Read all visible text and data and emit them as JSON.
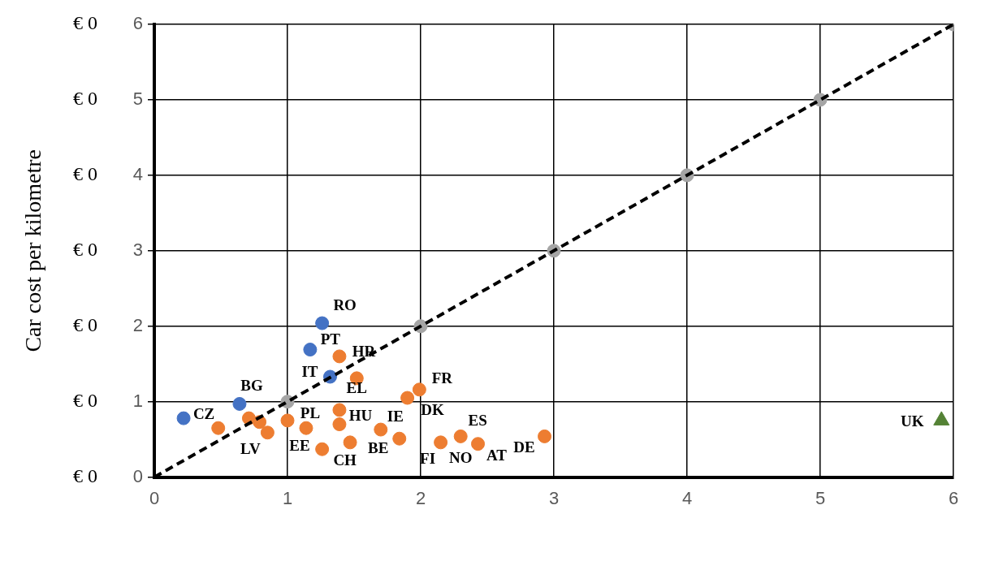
{
  "chart_data": {
    "type": "scatter",
    "ylabel": "Car cost per kilometre",
    "xlim": [
      0,
      6
    ],
    "xticks": [
      0,
      1,
      2,
      3,
      4,
      5,
      6
    ],
    "ylim": [
      0,
      6
    ],
    "yticks": [
      0,
      1,
      2,
      3,
      4,
      5,
      6
    ],
    "grid": true,
    "legend": false,
    "marker": "circle",
    "series": [
      {
        "type": "line",
        "color": "#000000",
        "line_style": "dashed",
        "marker": "none",
        "x": [
          0,
          6
        ],
        "values": [
          0,
          6
        ]
      },
      {
        "color": "#a5a5a5",
        "x": [
          1,
          2,
          3,
          4,
          5,
          6
        ],
        "values": [
          1,
          2,
          3,
          4,
          5,
          6
        ]
      },
      {
        "color": "#4472c4",
        "x": [
          0.22,
          0.64,
          1.32,
          1.17,
          1.26
        ],
        "values": [
          0.78,
          0.97,
          1.33,
          1.69,
          2.04
        ]
      },
      {
        "color": "#ed7d31",
        "x": [
          0.48,
          0.71,
          0.79,
          0.85,
          1.0,
          1.14,
          1.26,
          1.39,
          1.39,
          1.39,
          1.47,
          1.52,
          1.7,
          1.84,
          1.9,
          1.99,
          2.15,
          2.3,
          2.43,
          2.93
        ],
        "values": [
          0.65,
          0.78,
          0.73,
          0.59,
          0.75,
          0.65,
          0.37,
          0.89,
          0.7,
          1.6,
          0.46,
          1.31,
          0.63,
          0.51,
          1.05,
          1.16,
          0.46,
          0.54,
          0.44,
          0.54
        ]
      },
      {
        "color": "#548235",
        "marker": "triangle",
        "x": [
          5.91
        ],
        "values": [
          0.75
        ]
      }
    ],
    "annotations": [
      "€ 0",
      "€ 0",
      "€ 0",
      "€ 0",
      "€ 0",
      "€ 0",
      "€ 0",
      {
        "text": "RO",
        "x": 1.26,
        "y": 2.04
      },
      {
        "text": "PT",
        "x": 1.17,
        "y": 1.69
      },
      {
        "text": "HR",
        "x": 1.39,
        "y": 1.6
      },
      {
        "text": "IT",
        "x": 1.32,
        "y": 1.33
      },
      {
        "text": "EL",
        "x": 1.52,
        "y": 1.31
      },
      {
        "text": "FR",
        "x": 1.99,
        "y": 1.16
      },
      {
        "text": "BG",
        "x": 0.64,
        "y": 0.97
      },
      {
        "text": "CZ",
        "x": 0.22,
        "y": 0.78
      },
      {
        "text": "DK",
        "x": 1.9,
        "y": 1.05
      },
      {
        "text": "ES",
        "x": 2.3,
        "y": 0.54
      },
      {
        "text": "HU",
        "x": 1.39,
        "y": 0.89
      },
      {
        "text": "IE",
        "x": 1.7,
        "y": 0.63
      },
      {
        "text": "PL",
        "x": 1.0,
        "y": 0.75
      },
      {
        "text": "LV",
        "x": 0.85,
        "y": 0.59
      },
      {
        "text": "EE",
        "x": 1.14,
        "y": 0.65
      },
      {
        "text": "CH",
        "x": 1.26,
        "y": 0.37
      },
      {
        "text": "BE",
        "x": 1.84,
        "y": 0.51
      },
      {
        "text": "FI",
        "x": 2.15,
        "y": 0.46
      },
      {
        "text": "NO",
        "x": 2.3,
        "y": 0.54
      },
      {
        "text": "AT",
        "x": 2.43,
        "y": 0.44
      },
      {
        "text": "DE",
        "x": 2.93,
        "y": 0.54
      },
      {
        "text": "UK",
        "x": 5.91,
        "y": 0.75
      }
    ]
  }
}
